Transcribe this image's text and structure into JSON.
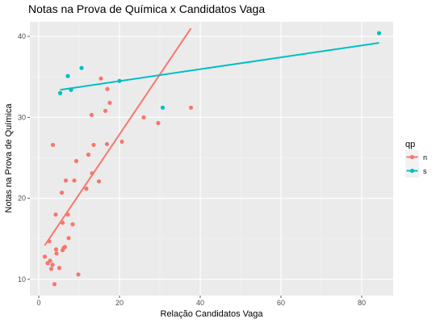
{
  "chart_data": {
    "type": "scatter",
    "title": "Notas na Prova de Química x Candidatos Vaga",
    "xlabel": "Relação Candidatos Vaga",
    "ylabel": "Notas na Prova de Química",
    "xlim": [
      -2.2,
      87.8
    ],
    "ylim": [
      8.0,
      41.8
    ],
    "xticks": [
      0,
      20,
      40,
      60,
      80
    ],
    "yticks": [
      10,
      20,
      30,
      40
    ],
    "grid": true,
    "legend": {
      "title": "qp",
      "placement": "right"
    },
    "series": [
      {
        "name": "n",
        "color": "#f8766d",
        "points": [
          [
            1.5,
            12.8
          ],
          [
            2.2,
            12.0
          ],
          [
            2.6,
            14.7
          ],
          [
            2.8,
            12.3
          ],
          [
            3.1,
            11.3
          ],
          [
            3.4,
            11.8
          ],
          [
            3.5,
            26.6
          ],
          [
            3.9,
            9.4
          ],
          [
            4.2,
            18.0
          ],
          [
            4.3,
            13.7
          ],
          [
            4.4,
            13.2
          ],
          [
            5.1,
            11.4
          ],
          [
            5.7,
            20.7
          ],
          [
            5.9,
            13.6
          ],
          [
            5.9,
            17.0
          ],
          [
            6.2,
            13.9
          ],
          [
            6.5,
            14.0
          ],
          [
            6.7,
            22.2
          ],
          [
            7.2,
            18.0
          ],
          [
            7.4,
            15.1
          ],
          [
            8.4,
            16.8
          ],
          [
            8.8,
            22.2
          ],
          [
            9.3,
            24.6
          ],
          [
            9.8,
            10.6
          ],
          [
            11.8,
            21.2
          ],
          [
            12.3,
            25.4
          ],
          [
            13.1,
            30.3
          ],
          [
            13.2,
            23.1
          ],
          [
            13.6,
            26.6
          ],
          [
            14.9,
            22.1
          ],
          [
            15.4,
            34.8
          ],
          [
            16.5,
            30.8
          ],
          [
            16.9,
            26.7
          ],
          [
            17.0,
            33.5
          ],
          [
            17.6,
            31.8
          ],
          [
            20.6,
            27.0
          ],
          [
            26.0,
            30.0
          ],
          [
            29.6,
            29.3
          ],
          [
            37.7,
            31.2
          ]
        ],
        "fit": {
          "x": [
            1.5,
            37.7
          ],
          "y": [
            14.2,
            41.0
          ]
        }
      },
      {
        "name": "s",
        "color": "#00bfc4",
        "points": [
          [
            5.3,
            33.0
          ],
          [
            7.2,
            35.1
          ],
          [
            8.0,
            33.4
          ],
          [
            10.6,
            36.1
          ],
          [
            20.0,
            34.5
          ],
          [
            30.7,
            31.2
          ],
          [
            84.3,
            40.4
          ]
        ],
        "fit": {
          "x": [
            5.3,
            84.3
          ],
          "y": [
            33.4,
            39.2
          ]
        }
      }
    ]
  }
}
